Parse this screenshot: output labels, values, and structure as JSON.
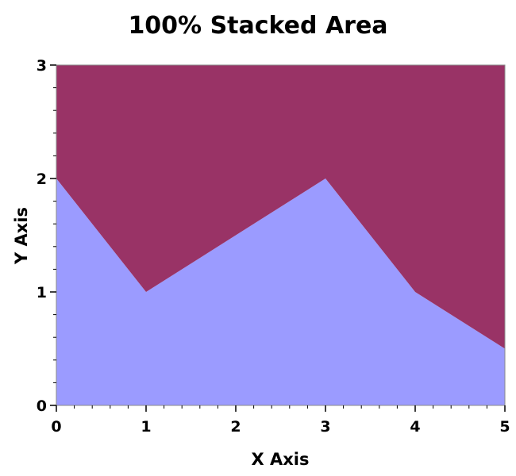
{
  "chart_data": {
    "type": "area",
    "stacked": true,
    "title": "100% Stacked Area",
    "xlabel": "X Axis",
    "ylabel": "Y Axis",
    "x": [
      0,
      1,
      2,
      3,
      4,
      5
    ],
    "xlim": [
      0,
      5
    ],
    "ylim": [
      0,
      3
    ],
    "x_ticks": [
      "0",
      "1",
      "2",
      "3",
      "4",
      "5"
    ],
    "y_ticks": [
      "0",
      "1",
      "2",
      "3"
    ],
    "grid": false,
    "legend": "none",
    "series": [
      {
        "values": [
          2,
          1,
          1.5,
          2,
          1,
          0.5
        ],
        "color": "#9b9bff"
      },
      {
        "values": [
          1,
          2,
          1.5,
          1,
          2,
          2.5
        ],
        "color": "#993366"
      }
    ]
  }
}
